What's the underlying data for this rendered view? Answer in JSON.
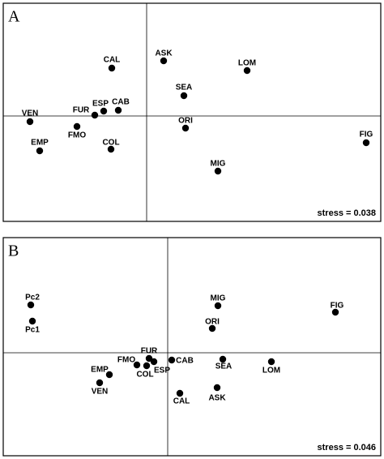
{
  "chart_data": [
    {
      "type": "scatter",
      "title": "A",
      "annotation": "stress = 0.038",
      "labels": [
        "CAL",
        "ASK",
        "LOM",
        "SEA",
        "CAB",
        "ESP",
        "FUR",
        "VEN",
        "FMO",
        "ORI",
        "FIG",
        "EMP",
        "COL",
        "MIG"
      ],
      "x": [
        -0.43,
        0.21,
        1.24,
        0.46,
        -0.35,
        -0.53,
        -0.64,
        -1.44,
        -0.86,
        0.48,
        2.71,
        -1.32,
        -0.44,
        0.88
      ],
      "y": [
        0.59,
        0.68,
        0.56,
        0.25,
        0.07,
        0.06,
        0.01,
        -0.07,
        -0.13,
        -0.15,
        -0.33,
        -0.43,
        -0.41,
        -0.68
      ],
      "xlim": [
        -1.77,
        2.89
      ],
      "ylim": [
        -1.3,
        1.39
      ],
      "color": "#000000"
    },
    {
      "type": "scatter",
      "title": "B",
      "annotation": "stress = 0.046",
      "labels": [
        "Pc2",
        "Pc1",
        "MIG",
        "FIG",
        "ORI",
        "FUR",
        "FMO",
        "CAB",
        "COL",
        "ESP",
        "SEA",
        "LOM",
        "EMP",
        "VEN",
        "CAL",
        "ASK"
      ],
      "x": [
        -1.69,
        -1.67,
        0.62,
        2.07,
        0.55,
        -0.23,
        -0.38,
        0.05,
        -0.26,
        -0.17,
        0.68,
        1.28,
        -0.72,
        -0.84,
        0.15,
        0.61
      ],
      "y": [
        0.59,
        0.39,
        0.58,
        0.5,
        0.3,
        -0.07,
        -0.15,
        -0.09,
        -0.16,
        -0.11,
        -0.08,
        -0.11,
        -0.27,
        -0.37,
        -0.5,
        -0.43
      ],
      "xlim": [
        -2.03,
        2.63
      ],
      "ylim": [
        -1.27,
        1.42
      ],
      "color": "#000000"
    }
  ]
}
